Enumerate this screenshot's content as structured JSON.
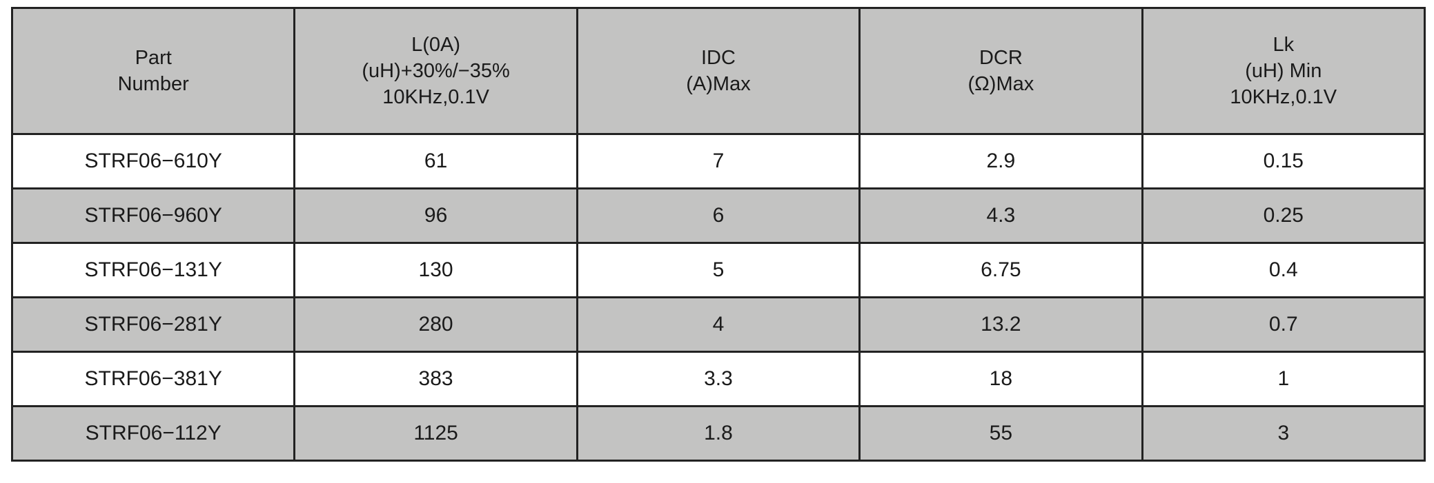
{
  "table": {
    "headers": [
      {
        "lines": [
          "Part",
          "Number"
        ]
      },
      {
        "lines": [
          "L(0A)",
          "(uH)+30%/−35%",
          "10KHz,0.1V"
        ]
      },
      {
        "lines": [
          "IDC",
          "(A)Max"
        ]
      },
      {
        "lines": [
          "DCR",
          "(Ω)Max"
        ]
      },
      {
        "lines": [
          "Lk",
          "(uH) Min",
          "10KHz,0.1V"
        ]
      }
    ],
    "rows": [
      [
        "STRF06−610Y",
        "61",
        "7",
        "2.9",
        "0.15"
      ],
      [
        "STRF06−960Y",
        "96",
        "6",
        "4.3",
        "0.25"
      ],
      [
        "STRF06−131Y",
        "130",
        "5",
        "6.75",
        "0.4"
      ],
      [
        "STRF06−281Y",
        "280",
        "4",
        "13.2",
        "0.7"
      ],
      [
        "STRF06−381Y",
        "383",
        "3.3",
        "18",
        "1"
      ],
      [
        "STRF06−112Y",
        "1125",
        "1.8",
        "55",
        "3"
      ]
    ]
  },
  "colors": {
    "header_bg": "#c3c3c2",
    "row_alt_bg": "#c3c3c2",
    "row_bg": "#ffffff",
    "border": "#222222"
  }
}
